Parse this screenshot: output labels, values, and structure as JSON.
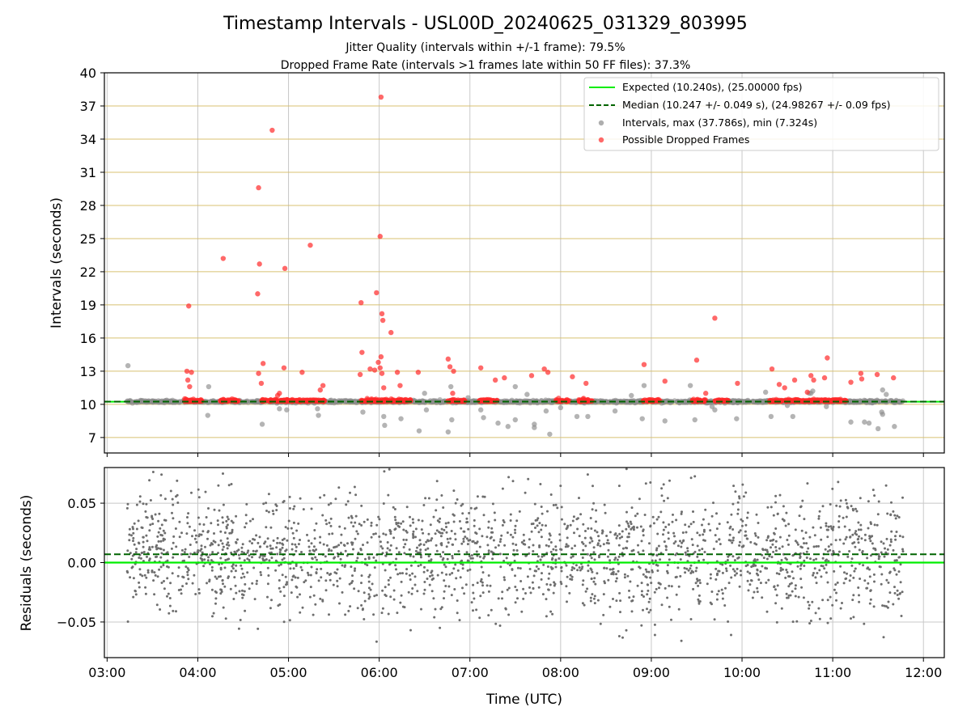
{
  "chart_data": [
    {
      "type": "scatter",
      "title": "Timestamp Intervals - USL00D_20240625_031329_803995",
      "subtitle_lines": [
        "Jitter Quality (intervals within +/-1 frame): 79.5%",
        "Dropped Frame Rate (intervals >1 frames late within 50 FF files): 37.3%"
      ],
      "ylabel": "Intervals (seconds)",
      "xlim_hours": [
        2.97,
        12.23
      ],
      "ylim": [
        5.6,
        40
      ],
      "yticks": [
        7,
        10,
        13,
        16,
        19,
        22,
        25,
        28,
        31,
        34,
        37,
        40
      ],
      "grid": true,
      "legend_position": "top-right",
      "colors": {
        "expected": "#00ee00",
        "median": "#006400",
        "intervals": "#8c8c8c",
        "dropped": "#ff2a2a",
        "hgrid": "#d8c070",
        "vgrid": "#c8c8c8"
      },
      "expected_value": 10.24,
      "median_value": 10.247,
      "legend": [
        {
          "key": "expected",
          "label": "Expected (10.240s), (25.00000 fps)"
        },
        {
          "key": "median",
          "label": "Median (10.247 +/- 0.049 s), (24.98267 +/- 0.09 fps)"
        },
        {
          "key": "intervals",
          "label": "Intervals, max (37.786s), min (7.324s)"
        },
        {
          "key": "dropped",
          "label": "Possible Dropped Frames"
        }
      ],
      "dropped_band_ranges_hours": [
        [
          3.85,
          4.05
        ],
        [
          4.25,
          4.45
        ],
        [
          4.7,
          5.4
        ],
        [
          5.8,
          6.35
        ],
        [
          6.75,
          6.95
        ],
        [
          7.1,
          7.3
        ],
        [
          7.95,
          8.1
        ],
        [
          8.2,
          8.35
        ],
        [
          8.9,
          9.1
        ],
        [
          9.45,
          9.6
        ],
        [
          9.7,
          9.85
        ],
        [
          10.3,
          10.7
        ],
        [
          10.7,
          11.15
        ]
      ],
      "dropped_points": [
        [
          3.9,
          18.9
        ],
        [
          3.88,
          13.0
        ],
        [
          3.93,
          12.9
        ],
        [
          3.89,
          12.2
        ],
        [
          3.91,
          11.6
        ],
        [
          4.28,
          23.2
        ],
        [
          4.67,
          29.6
        ],
        [
          4.68,
          22.7
        ],
        [
          4.66,
          20.0
        ],
        [
          4.72,
          13.7
        ],
        [
          4.67,
          12.8
        ],
        [
          4.7,
          11.9
        ],
        [
          4.82,
          34.8
        ],
        [
          4.96,
          22.3
        ],
        [
          4.95,
          13.3
        ],
        [
          4.9,
          11.0
        ],
        [
          4.88,
          10.8
        ],
        [
          5.15,
          12.9
        ],
        [
          5.24,
          24.4
        ],
        [
          5.38,
          11.7
        ],
        [
          5.35,
          11.3
        ],
        [
          5.8,
          19.2
        ],
        [
          5.81,
          14.7
        ],
        [
          5.79,
          12.7
        ],
        [
          5.97,
          20.1
        ],
        [
          6.02,
          37.8
        ],
        [
          6.01,
          25.2
        ],
        [
          6.03,
          18.2
        ],
        [
          6.04,
          17.6
        ],
        [
          6.13,
          16.5
        ],
        [
          6.02,
          14.3
        ],
        [
          5.99,
          13.8
        ],
        [
          6.01,
          13.3
        ],
        [
          6.03,
          12.8
        ],
        [
          5.95,
          13.1
        ],
        [
          5.9,
          13.2
        ],
        [
          6.05,
          11.5
        ],
        [
          6.2,
          12.9
        ],
        [
          6.23,
          11.7
        ],
        [
          6.43,
          12.9
        ],
        [
          6.76,
          14.1
        ],
        [
          6.78,
          13.4
        ],
        [
          6.82,
          13.0
        ],
        [
          6.81,
          11.0
        ],
        [
          7.12,
          13.3
        ],
        [
          7.28,
          12.2
        ],
        [
          7.38,
          12.4
        ],
        [
          7.68,
          12.6
        ],
        [
          7.82,
          13.2
        ],
        [
          7.86,
          12.9
        ],
        [
          8.13,
          12.5
        ],
        [
          8.28,
          11.9
        ],
        [
          8.92,
          13.6
        ],
        [
          9.15,
          12.1
        ],
        [
          9.5,
          14.0
        ],
        [
          9.6,
          11.0
        ],
        [
          9.7,
          17.8
        ],
        [
          9.95,
          11.9
        ],
        [
          10.33,
          13.2
        ],
        [
          10.41,
          11.8
        ],
        [
          10.47,
          11.5
        ],
        [
          10.58,
          12.2
        ],
        [
          10.72,
          11.1
        ],
        [
          10.76,
          12.6
        ],
        [
          10.79,
          12.2
        ],
        [
          10.91,
          12.4
        ],
        [
          10.94,
          14.2
        ],
        [
          11.2,
          12.0
        ],
        [
          11.31,
          12.8
        ],
        [
          11.32,
          12.3
        ],
        [
          11.49,
          12.7
        ],
        [
          11.67,
          12.4
        ]
      ],
      "interval_outliers": [
        [
          3.23,
          13.5
        ],
        [
          4.12,
          11.6
        ],
        [
          4.11,
          9.0
        ],
        [
          4.71,
          8.2
        ],
        [
          4.9,
          9.6
        ],
        [
          4.98,
          9.5
        ],
        [
          5.33,
          9.0
        ],
        [
          5.32,
          9.6
        ],
        [
          5.82,
          9.3
        ],
        [
          6.06,
          8.1
        ],
        [
          6.05,
          8.9
        ],
        [
          6.24,
          8.7
        ],
        [
          6.44,
          7.6
        ],
        [
          6.5,
          11.0
        ],
        [
          6.52,
          9.5
        ],
        [
          6.76,
          7.5
        ],
        [
          6.8,
          8.6
        ],
        [
          6.79,
          11.6
        ],
        [
          6.98,
          10.6
        ],
        [
          7.12,
          9.5
        ],
        [
          7.15,
          8.8
        ],
        [
          7.31,
          8.3
        ],
        [
          7.42,
          8.0
        ],
        [
          7.5,
          11.6
        ],
        [
          7.5,
          8.6
        ],
        [
          7.63,
          10.9
        ],
        [
          7.71,
          7.9
        ],
        [
          7.71,
          8.2
        ],
        [
          7.84,
          9.4
        ],
        [
          7.88,
          7.3
        ],
        [
          8.0,
          9.7
        ],
        [
          8.18,
          8.9
        ],
        [
          8.3,
          8.9
        ],
        [
          8.6,
          9.4
        ],
        [
          8.78,
          10.8
        ],
        [
          8.9,
          8.7
        ],
        [
          8.92,
          11.7
        ],
        [
          9.15,
          8.5
        ],
        [
          9.43,
          11.7
        ],
        [
          9.48,
          8.6
        ],
        [
          9.67,
          9.8
        ],
        [
          9.7,
          9.5
        ],
        [
          9.94,
          8.7
        ],
        [
          10.26,
          11.1
        ],
        [
          10.32,
          8.9
        ],
        [
          10.5,
          9.9
        ],
        [
          10.56,
          8.9
        ],
        [
          10.74,
          11.0
        ],
        [
          10.76,
          11.0
        ],
        [
          10.78,
          11.2
        ],
        [
          10.93,
          9.8
        ],
        [
          11.2,
          8.4
        ],
        [
          11.35,
          8.4
        ],
        [
          11.4,
          8.3
        ],
        [
          11.5,
          7.8
        ],
        [
          11.54,
          9.3
        ],
        [
          11.55,
          9.1
        ],
        [
          11.55,
          11.3
        ],
        [
          11.59,
          10.9
        ],
        [
          11.68,
          8.0
        ],
        [
          11.73,
          10.2
        ]
      ],
      "interval_range_hours": [
        3.22,
        11.78
      ]
    },
    {
      "type": "scatter",
      "ylabel": "Residuals (seconds)",
      "xlabel": "Time (UTC)",
      "xlim_hours": [
        2.97,
        12.23
      ],
      "ylim": [
        -0.08,
        0.08
      ],
      "yticks": [
        -0.05,
        0.0,
        0.05
      ],
      "ytick_labels": [
        "−0.05",
        "0.00",
        "0.05"
      ],
      "xticks_hours": [
        3,
        4,
        5,
        6,
        7,
        8,
        9,
        10,
        11,
        12
      ],
      "xtick_labels": [
        "03:00",
        "04:00",
        "05:00",
        "06:00",
        "07:00",
        "08:00",
        "09:00",
        "10:00",
        "11:00",
        "12:00"
      ],
      "grid": true,
      "expected_residual": 0.0,
      "median_residual": 0.007,
      "residual_std": 0.025,
      "point_count": 2200,
      "residual_range_hours": [
        3.22,
        11.78
      ]
    }
  ]
}
